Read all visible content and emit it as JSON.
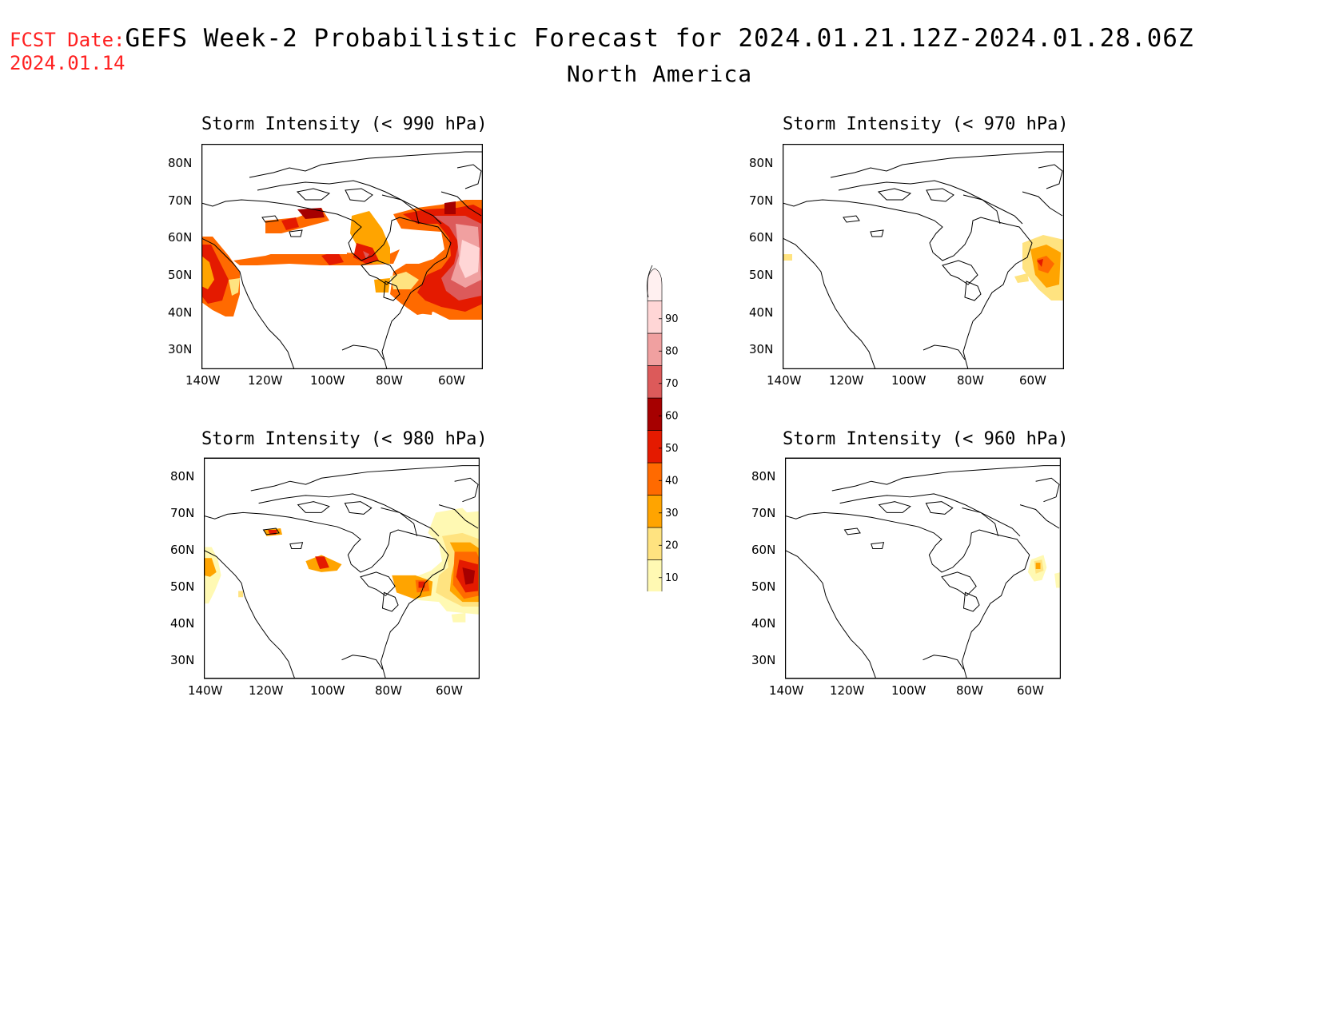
{
  "fcst_date": {
    "label": "FCST Date:",
    "value": "2024.01.14"
  },
  "title": "GEFS Week-2 Probabilistic Forecast for 2024.01.21.12Z-2024.01.28.06Z",
  "subtitle": "North America",
  "lat_labels": [
    "80N",
    "70N",
    "60N",
    "50N",
    "40N",
    "30N"
  ],
  "lon_labels": [
    "140W",
    "120W",
    "100W",
    "80W",
    "60W"
  ],
  "colorbar": {
    "levels": [
      "10",
      "20",
      "30",
      "40",
      "50",
      "60",
      "70",
      "80",
      "90"
    ],
    "colors": [
      "#fff9b3",
      "#ffe380",
      "#ffa400",
      "#ff6a00",
      "#e41a00",
      "#a60000",
      "#dc5a5a",
      "#f0a0a0",
      "#ffd6d6",
      "#fff0f0"
    ]
  },
  "panels": [
    {
      "title": "Storm Intensity (< 990 hPa)"
    },
    {
      "title": "Storm Intensity (< 970 hPa)"
    },
    {
      "title": "Storm Intensity (< 980 hPa)"
    },
    {
      "title": "Storm Intensity (< 960 hPa)"
    }
  ]
}
